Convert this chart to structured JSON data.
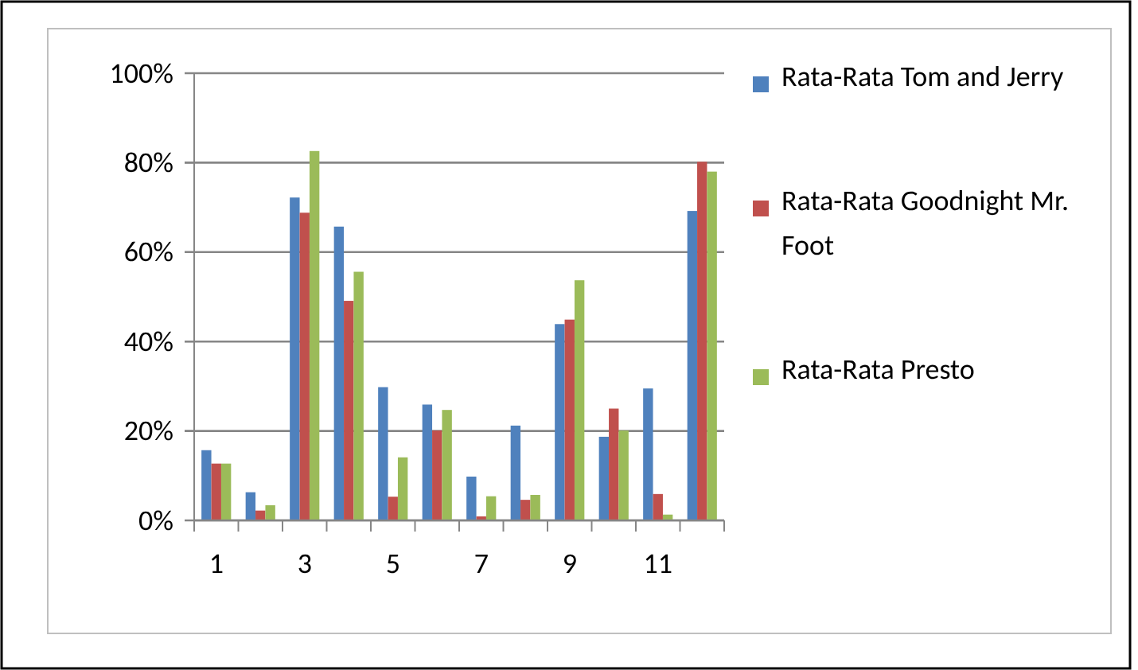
{
  "chart_data": {
    "type": "bar",
    "categories": [
      "1",
      null,
      "3",
      null,
      "5",
      null,
      "7",
      null,
      "9",
      null,
      "11",
      null
    ],
    "series": [
      {
        "name": "Rata-Rata Tom and Jerry",
        "color": "#4f81bd",
        "values": [
          15.7,
          6.3,
          72.2,
          65.7,
          29.8,
          25.9,
          9.8,
          21.2,
          43.9,
          18.7,
          29.5,
          69.2
        ]
      },
      {
        "name": "Rata-Rata Goodnight Mr. Foot",
        "color": "#c0504d",
        "values": [
          12.7,
          2.2,
          68.8,
          49.1,
          5.3,
          20.1,
          0.9,
          4.6,
          44.9,
          25.0,
          5.9,
          80.2
        ]
      },
      {
        "name": "Rata-Rata Presto",
        "color": "#9bbb59",
        "values": [
          12.7,
          3.4,
          82.6,
          55.6,
          14.1,
          24.7,
          5.4,
          5.7,
          53.7,
          20.1,
          1.3,
          78.0
        ]
      }
    ],
    "ylim": [
      0,
      100
    ],
    "yticks": [
      {
        "value": 0,
        "label": "0%"
      },
      {
        "value": 20,
        "label": "20%"
      },
      {
        "value": 40,
        "label": "40%"
      },
      {
        "value": 60,
        "label": "60%"
      },
      {
        "value": 80,
        "label": "80%"
      },
      {
        "value": 100,
        "label": "100%"
      }
    ],
    "grid": "y",
    "legend": "right"
  }
}
